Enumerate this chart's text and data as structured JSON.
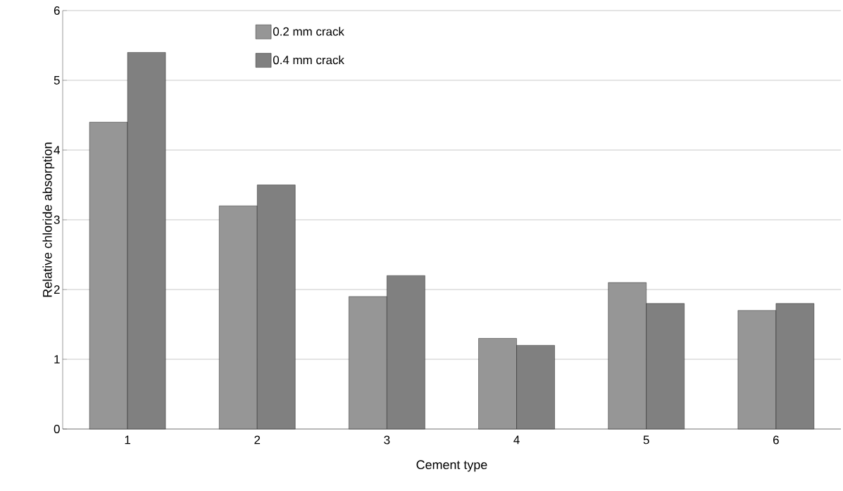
{
  "chart_data": {
    "type": "bar",
    "xlabel": "Cement type",
    "ylabel": "Relative chloride absorption",
    "categories": [
      "1",
      "2",
      "3",
      "4",
      "5",
      "6"
    ],
    "series": [
      {
        "name": "0.2 mm crack",
        "color": "#969696",
        "values": [
          4.4,
          3.2,
          1.9,
          1.3,
          2.1,
          1.7
        ]
      },
      {
        "name": "0.4 mm crack",
        "color": "#808080",
        "values": [
          5.4,
          3.5,
          2.2,
          1.2,
          1.8,
          1.8
        ]
      }
    ],
    "ylim": [
      0,
      6
    ],
    "yticks": [
      0,
      1,
      2,
      3,
      4,
      5,
      6
    ],
    "grid": "y",
    "legend": "top left"
  }
}
